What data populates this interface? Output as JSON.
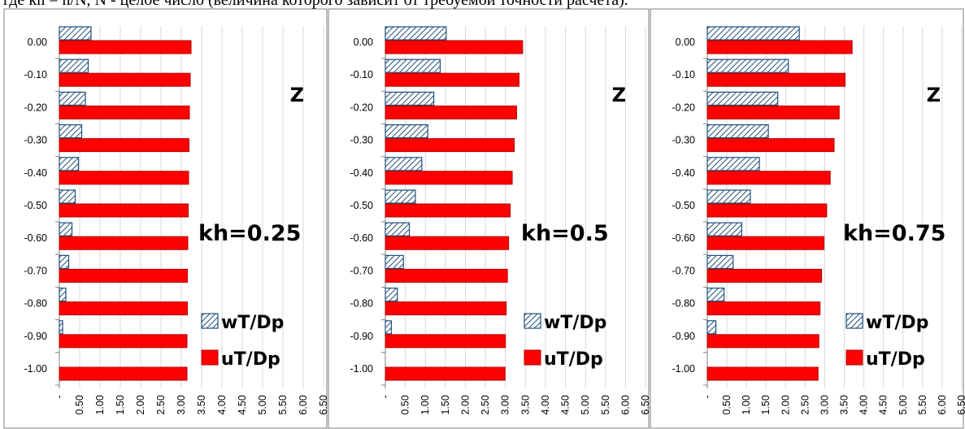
{
  "caption": "где kh = n/N, N - целое число (величина которого зависит от требуемой точности расчета).",
  "colors": {
    "w_fill": "#ffffff",
    "w_hatch": "#1f4e79",
    "w_stroke": "#1f4e79",
    "u_fill": "#ff0000",
    "u_stroke": "#b30000",
    "grid": "#d9d9d9"
  },
  "chart_data": [
    {
      "type": "bar",
      "orientation": "horizontal",
      "annotations": {
        "kh": "kh=0.25",
        "z": "Z"
      },
      "categories": [
        "0.00",
        "-0.10",
        "-0.20",
        "-0.30",
        "-0.40",
        "-0.50",
        "-0.60",
        "-0.70",
        "-0.80",
        "-0.90",
        "-1.00"
      ],
      "x_ticks": [
        "-",
        "0.50",
        "1.00",
        "1.50",
        "2.00",
        "2.50",
        "3.00",
        "3.50",
        "4.00",
        "4.50",
        "5.00",
        "5.50",
        "6.00",
        "6.50"
      ],
      "xlim": [
        0,
        6.5
      ],
      "grid": true,
      "legend": "bottom-right",
      "series": [
        {
          "name": "wT/Dp",
          "pattern": "hatch",
          "values": [
            0.78,
            0.71,
            0.64,
            0.55,
            0.47,
            0.39,
            0.31,
            0.23,
            0.16,
            0.08,
            0.0
          ]
        },
        {
          "name": "uT/Dp",
          "pattern": "solid",
          "values": [
            3.24,
            3.22,
            3.2,
            3.19,
            3.18,
            3.17,
            3.16,
            3.15,
            3.15,
            3.14,
            3.14
          ]
        }
      ]
    },
    {
      "type": "bar",
      "orientation": "horizontal",
      "annotations": {
        "kh": "kh=0.5",
        "z": "Z"
      },
      "categories": [
        "0.00",
        "-0.10",
        "-0.20",
        "-0.30",
        "-0.40",
        "-0.50",
        "-0.60",
        "-0.70",
        "-0.80",
        "-0.90",
        "-1.00"
      ],
      "x_ticks": [
        "-",
        "0.50",
        "1.00",
        "1.50",
        "2.00",
        "2.50",
        "3.00",
        "3.50",
        "4.00",
        "4.50",
        "5.00",
        "5.50",
        "6.00",
        "6.50"
      ],
      "xlim": [
        0,
        6.5
      ],
      "grid": true,
      "legend": "bottom-right",
      "series": [
        {
          "name": "wT/Dp",
          "pattern": "hatch",
          "values": [
            1.52,
            1.37,
            1.21,
            1.06,
            0.91,
            0.75,
            0.6,
            0.45,
            0.3,
            0.15,
            0.0
          ]
        },
        {
          "name": "uT/Dp",
          "pattern": "solid",
          "values": [
            3.43,
            3.34,
            3.28,
            3.22,
            3.17,
            3.12,
            3.08,
            3.05,
            3.02,
            3.0,
            2.99
          ]
        }
      ]
    },
    {
      "type": "bar",
      "orientation": "horizontal",
      "annotations": {
        "kh": "kh=0.75",
        "z": "Z"
      },
      "categories": [
        "0.00",
        "-0.10",
        "-0.20",
        "-0.30",
        "-0.40",
        "-0.50",
        "-0.60",
        "-0.70",
        "-0.80",
        "-0.90",
        "-1.00"
      ],
      "x_ticks": [
        "-",
        "0.50",
        "1.00",
        "1.50",
        "2.00",
        "2.50",
        "3.00",
        "3.50",
        "4.00",
        "4.50",
        "5.00",
        "5.50",
        "6.00",
        "6.50"
      ],
      "xlim": [
        0,
        6.5
      ],
      "grid": true,
      "legend": "bottom-right",
      "series": [
        {
          "name": "wT/Dp",
          "pattern": "hatch",
          "values": [
            2.35,
            2.07,
            1.8,
            1.56,
            1.33,
            1.1,
            0.88,
            0.66,
            0.43,
            0.22,
            0.0
          ]
        },
        {
          "name": "uT/Dp",
          "pattern": "solid",
          "values": [
            3.7,
            3.52,
            3.37,
            3.24,
            3.14,
            3.05,
            2.98,
            2.92,
            2.88,
            2.85,
            2.83
          ]
        }
      ]
    }
  ]
}
